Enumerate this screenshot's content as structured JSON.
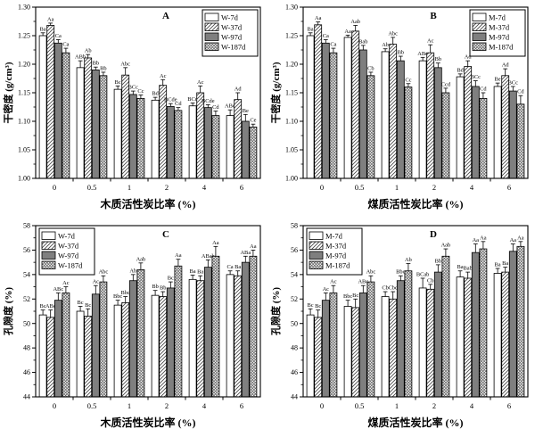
{
  "figure_title": "",
  "colors": {
    "axis": "#000000",
    "bar_white": "#ffffff",
    "bar_solid": "#7f7f7f",
    "hatch_line": "#444444",
    "background": "#ffffff"
  },
  "chart_data": [
    {
      "type": "bar",
      "panel_label": "A",
      "ylabel": "干密度 (g/cm³)",
      "xlabel": "木质活性炭比率 (%)",
      "ylim": [
        1.0,
        1.3
      ],
      "ytick_values": [
        1.0,
        1.05,
        1.1,
        1.15,
        1.2,
        1.25,
        1.3
      ],
      "ytick_labels": [
        "1.00",
        "1.05",
        "1.10",
        "1.15",
        "1.20",
        "1.25",
        "1.30"
      ],
      "categories": [
        "0",
        "0.5",
        "1",
        "2",
        "4",
        "6"
      ],
      "legend_position": "right",
      "grid": false,
      "series": [
        {
          "name": "W-7d",
          "fill": "white",
          "values": [
            1.25,
            1.194,
            1.156,
            1.137,
            1.127,
            1.11
          ],
          "errors": [
            0.005,
            0.012,
            0.006,
            0.005,
            0.005,
            0.01
          ],
          "letters": [
            "Ba",
            "ABb",
            "Bc",
            "Bd",
            "BCd",
            "ABd"
          ]
        },
        {
          "name": "W-37d",
          "fill": "diag",
          "values": [
            1.268,
            1.211,
            1.181,
            1.163,
            1.15,
            1.138
          ],
          "errors": [
            0.004,
            0.006,
            0.013,
            0.01,
            0.012,
            0.012
          ],
          "letters": [
            "Aa",
            "Ab",
            "Abc",
            "Ac",
            "Ac",
            "Ad"
          ]
        },
        {
          "name": "W-97d",
          "fill": "solid",
          "values": [
            1.237,
            1.19,
            1.147,
            1.126,
            1.124,
            1.1
          ],
          "errors": [
            0.006,
            0.005,
            0.006,
            0.005,
            0.005,
            0.012
          ],
          "letters": [
            "Ca",
            "Bb",
            "BCc",
            "BCde",
            "BCde",
            "Be"
          ]
        },
        {
          "name": "W-187d",
          "fill": "cross",
          "values": [
            1.22,
            1.18,
            1.14,
            1.119,
            1.11,
            1.09
          ],
          "errors": [
            0.008,
            0.006,
            0.006,
            0.005,
            0.008,
            0.005
          ],
          "letters": [
            "Ca",
            "Bb",
            "Cc",
            "Cd",
            "Cd",
            "Ce"
          ]
        }
      ]
    },
    {
      "type": "bar",
      "panel_label": "B",
      "ylabel": "干密度 (g/cm³)",
      "xlabel": "煤质活性炭比率 (%)",
      "ylim": [
        1.0,
        1.3
      ],
      "ytick_values": [
        1.0,
        1.05,
        1.1,
        1.15,
        1.2,
        1.25,
        1.3
      ],
      "ytick_labels": [
        "1.00",
        "1.05",
        "1.10",
        "1.15",
        "1.20",
        "1.25",
        "1.30"
      ],
      "categories": [
        "0",
        "0.5",
        "1",
        "2",
        "4",
        "6"
      ],
      "legend_position": "right",
      "grid": false,
      "series": [
        {
          "name": "M-7d",
          "fill": "white",
          "values": [
            1.25,
            1.247,
            1.222,
            1.206,
            1.178,
            1.161
          ],
          "errors": [
            0.005,
            0.004,
            0.005,
            0.006,
            0.005,
            0.006
          ],
          "letters": [
            "Ba",
            "Aa",
            "Ab",
            "ABc",
            "Bd",
            "Be"
          ]
        },
        {
          "name": "M-37d",
          "fill": "diag",
          "values": [
            1.269,
            1.258,
            1.235,
            1.22,
            1.196,
            1.18
          ],
          "errors": [
            0.005,
            0.01,
            0.012,
            0.014,
            0.01,
            0.012
          ],
          "letters": [
            "Aa",
            "Aab",
            "Abc",
            "Ac",
            "Ad",
            "Ad"
          ]
        },
        {
          "name": "M-97d",
          "fill": "solid",
          "values": [
            1.237,
            1.225,
            1.206,
            1.194,
            1.161,
            1.153
          ],
          "errors": [
            0.006,
            0.008,
            0.008,
            0.008,
            0.01,
            0.008
          ],
          "letters": [
            "Ca",
            "Bab",
            "Bb",
            "Bb",
            "BCc",
            "BCc"
          ]
        },
        {
          "name": "M-187d",
          "fill": "cross",
          "values": [
            1.22,
            1.18,
            1.16,
            1.15,
            1.14,
            1.13
          ],
          "errors": [
            0.008,
            0.006,
            0.006,
            0.008,
            0.01,
            0.015
          ],
          "letters": [
            "Ca",
            "Cb",
            "Cc",
            "Ccd",
            "Cd",
            "Cd"
          ]
        }
      ]
    },
    {
      "type": "bar",
      "panel_label": "C",
      "ylabel": "孔隙度 (%)",
      "xlabel": "木质活性炭比率 (%)",
      "ylim": [
        44,
        58
      ],
      "ytick_values": [
        44,
        46,
        48,
        50,
        52,
        54,
        56,
        58
      ],
      "ytick_labels": [
        "44",
        "46",
        "48",
        "50",
        "52",
        "54",
        "56",
        "58"
      ],
      "categories": [
        "0",
        "0.5",
        "1",
        "2",
        "4",
        "6"
      ],
      "legend_position": "left",
      "grid": false,
      "series": [
        {
          "name": "W-7d",
          "fill": "white",
          "values": [
            50.7,
            51.0,
            51.5,
            52.3,
            53.6,
            54.0
          ],
          "errors": [
            0.4,
            0.4,
            0.4,
            0.4,
            0.35,
            0.3
          ],
          "letters": [
            "Bc",
            "Bc",
            "Bbc",
            "Bb",
            "Ba",
            "Ca"
          ]
        },
        {
          "name": "W-37d",
          "fill": "diag",
          "values": [
            50.5,
            50.6,
            51.7,
            52.2,
            53.5,
            53.9
          ],
          "errors": [
            0.6,
            0.6,
            0.5,
            0.4,
            0.4,
            0.4
          ],
          "letters": [
            "ABc",
            "Bc",
            "Bbc",
            "Bb",
            "Ba",
            "Ba"
          ]
        },
        {
          "name": "W-97d",
          "fill": "solid",
          "values": [
            51.9,
            52.4,
            53.5,
            52.9,
            54.6,
            55.0
          ],
          "errors": [
            0.6,
            0.7,
            0.5,
            0.5,
            0.6,
            0.5
          ],
          "letters": [
            "ABc",
            "Ac",
            "Ab",
            "Bc",
            "ABab",
            "ABa"
          ]
        },
        {
          "name": "W-187d",
          "fill": "cross",
          "values": [
            52.5,
            53.4,
            54.4,
            54.7,
            55.5,
            55.5
          ],
          "errors": [
            0.5,
            0.5,
            0.55,
            0.55,
            0.8,
            0.5
          ],
          "letters": [
            "Ac",
            "Abc",
            "Aab",
            "Aa",
            "Aa",
            "Aa"
          ]
        }
      ]
    },
    {
      "type": "bar",
      "panel_label": "D",
      "ylabel": "孔隙度 (%)",
      "xlabel": "煤质活性炭比率 (%)",
      "ylim": [
        44,
        58
      ],
      "ytick_values": [
        44,
        46,
        48,
        50,
        52,
        54,
        56,
        58
      ],
      "ytick_labels": [
        "44",
        "46",
        "48",
        "50",
        "52",
        "54",
        "56",
        "58"
      ],
      "categories": [
        "0",
        "0.5",
        "1",
        "2",
        "4",
        "6"
      ],
      "legend_position": "left",
      "grid": false,
      "series": [
        {
          "name": "M-7d",
          "fill": "white",
          "values": [
            50.7,
            51.4,
            52.2,
            52.9,
            53.8,
            54.1
          ],
          "errors": [
            0.5,
            0.5,
            0.4,
            0.8,
            0.5,
            0.4
          ],
          "letters": [
            "Bc",
            "Bbc",
            "Cb",
            "BCab",
            "Ba",
            "Ba"
          ]
        },
        {
          "name": "M-37d",
          "fill": "diag",
          "values": [
            50.5,
            51.3,
            52.0,
            52.8,
            53.7,
            54.2
          ],
          "errors": [
            0.6,
            0.7,
            0.6,
            0.4,
            0.5,
            0.4
          ],
          "letters": [
            "Bc",
            "Bc",
            "Cbc",
            "Cb",
            "Bab",
            "Ba"
          ]
        },
        {
          "name": "M-97d",
          "fill": "solid",
          "values": [
            51.9,
            52.5,
            53.5,
            54.2,
            55.8,
            55.9
          ],
          "errors": [
            0.6,
            0.6,
            0.4,
            0.6,
            0.7,
            0.6
          ],
          "letters": [
            "Ac",
            "ABc",
            "Bbc",
            "Bb",
            "Aa",
            "Aa"
          ]
        },
        {
          "name": "M-187d",
          "fill": "cross",
          "values": [
            52.5,
            53.4,
            54.3,
            55.5,
            56.1,
            56.3
          ],
          "errors": [
            0.6,
            0.5,
            0.6,
            0.6,
            0.6,
            0.4
          ],
          "letters": [
            "Ac",
            "Abc",
            "Ab",
            "Aab",
            "Aa",
            "Aa"
          ]
        }
      ]
    }
  ]
}
